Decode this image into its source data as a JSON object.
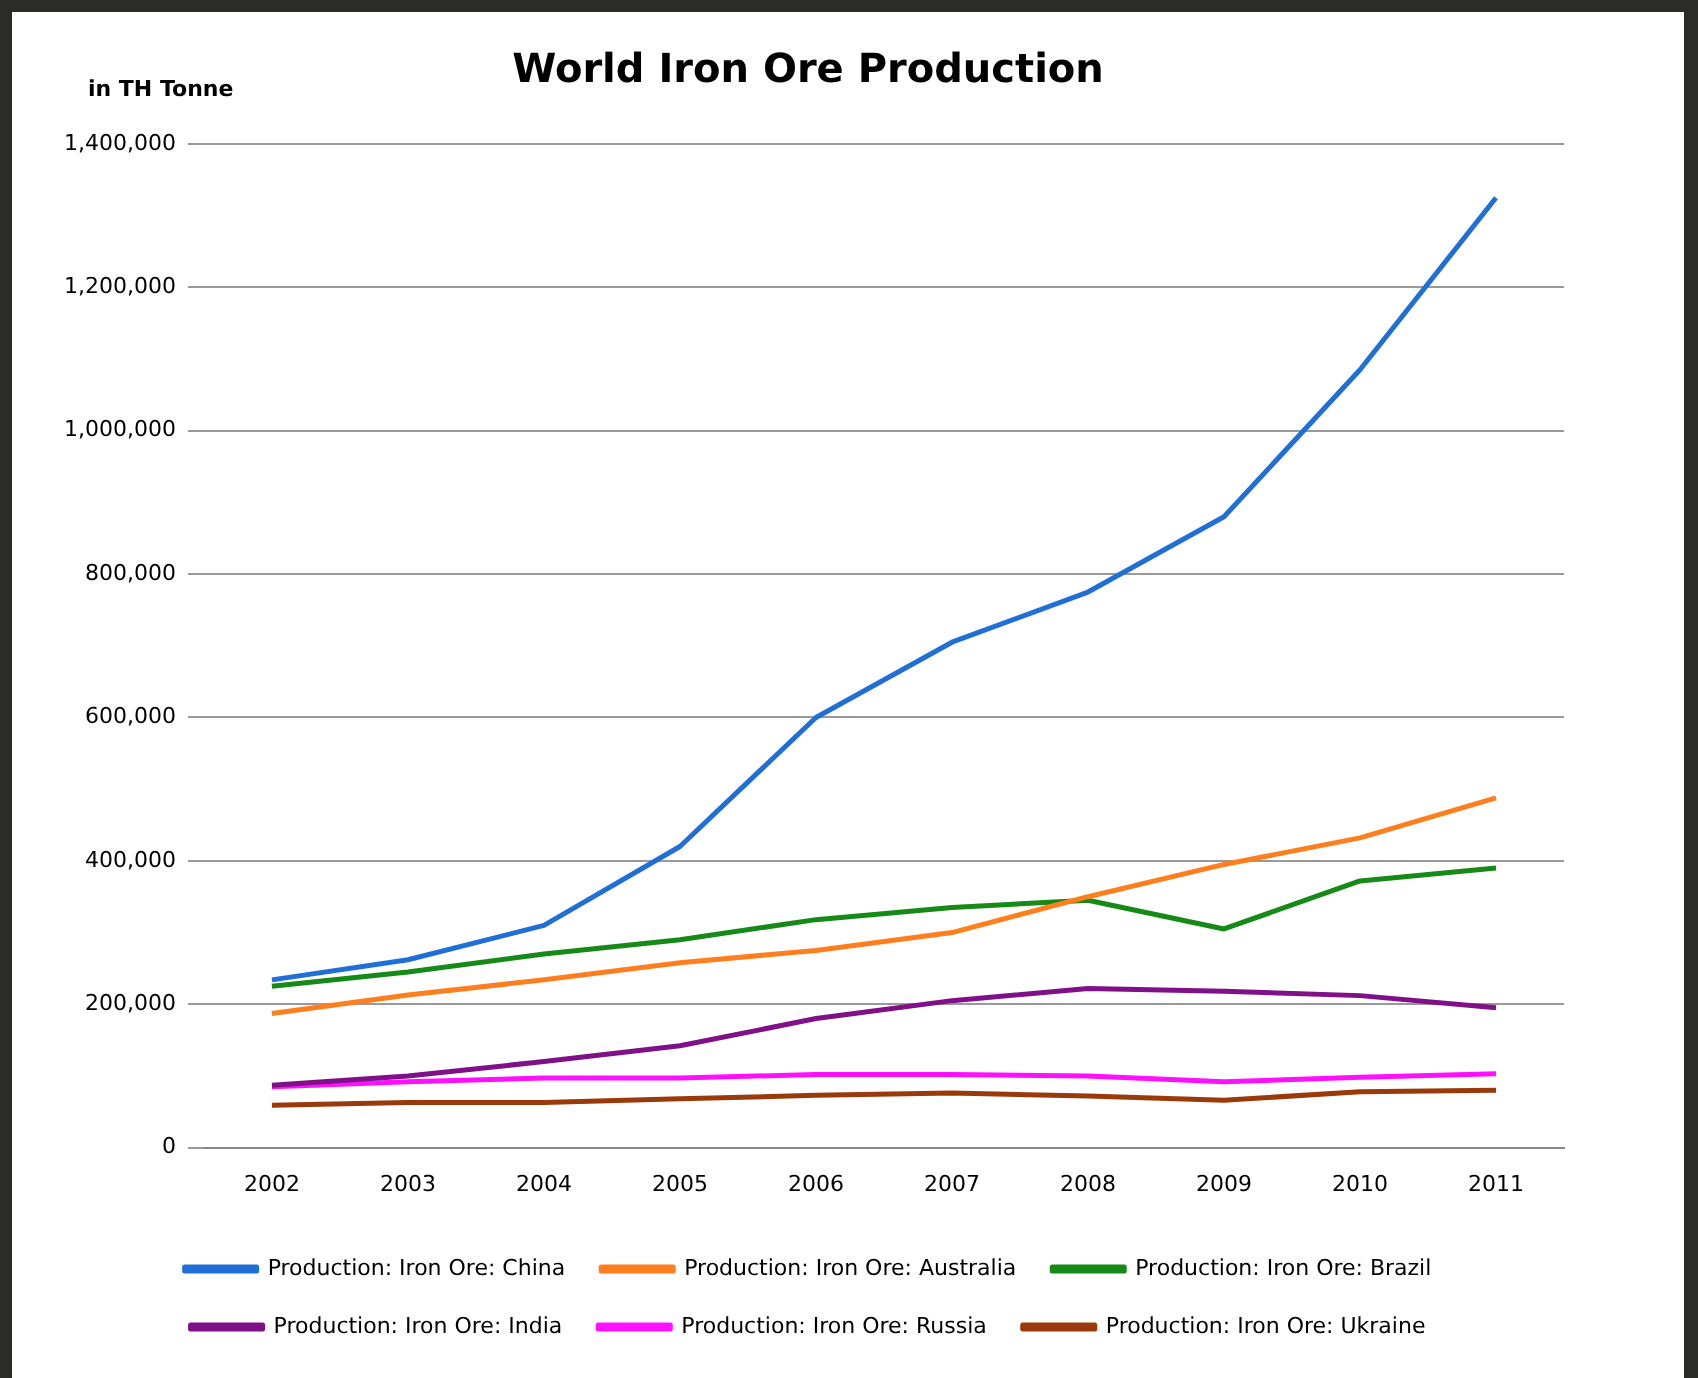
{
  "chart_data": {
    "type": "line",
    "title": "World Iron Ore Production",
    "ylabel": "in TH Tonne",
    "categories": [
      "2002",
      "2003",
      "2004",
      "2005",
      "2006",
      "2007",
      "2008",
      "2009",
      "2010",
      "2011"
    ],
    "ylim": [
      0,
      1400000
    ],
    "yticks": [
      {
        "value": 0,
        "label": "0"
      },
      {
        "value": 200000,
        "label": "200,000"
      },
      {
        "value": 400000,
        "label": "400,000"
      },
      {
        "value": 600000,
        "label": "600,000"
      },
      {
        "value": 800000,
        "label": "800,000"
      },
      {
        "value": 1000000,
        "label": "1,000,000"
      },
      {
        "value": 1200000,
        "label": "1,200,000"
      },
      {
        "value": 1400000,
        "label": "1,400,000"
      }
    ],
    "grid": "y",
    "legend": "bottom",
    "marker": "none",
    "line_style": "solid",
    "series": [
      {
        "name": "Production: Iron Ore: China",
        "color": "#1f6fd6",
        "values": [
          234000,
          262000,
          310000,
          420000,
          600000,
          705000,
          775000,
          880000,
          1085000,
          1325000
        ]
      },
      {
        "name": "Production: Iron Ore: Australia",
        "color": "#ff7f1e",
        "values": [
          187000,
          213000,
          234000,
          258000,
          275000,
          300000,
          350000,
          395000,
          432000,
          488000
        ]
      },
      {
        "name": "Production: Iron Ore: Brazil",
        "color": "#168a16",
        "values": [
          225000,
          245000,
          270000,
          290000,
          318000,
          335000,
          345000,
          305000,
          372000,
          390000
        ]
      },
      {
        "name": "Production: Iron Ore: India",
        "color": "#7f1088",
        "values": [
          87000,
          100000,
          120000,
          142000,
          180000,
          205000,
          222000,
          218000,
          212000,
          195000
        ]
      },
      {
        "name": "Production: Iron Ore: Russia",
        "color": "#ff10ff",
        "values": [
          85000,
          92000,
          97000,
          97000,
          102000,
          102000,
          100000,
          92000,
          98000,
          103000
        ]
      },
      {
        "name": "Production: Iron Ore: Ukraine",
        "color": "#9a3a0a",
        "values": [
          59000,
          63000,
          63000,
          68000,
          73000,
          76000,
          72000,
          66000,
          78000,
          80000
        ]
      }
    ]
  }
}
